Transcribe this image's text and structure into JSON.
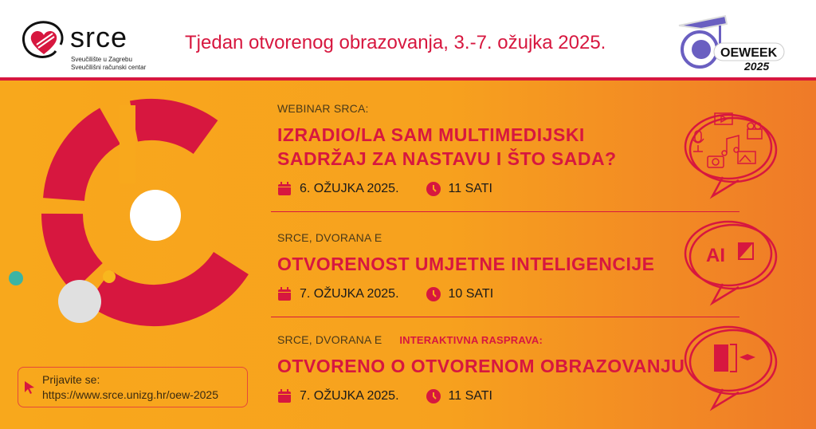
{
  "header": {
    "logo": {
      "name": "srce",
      "subtitle_line1": "Sveučilište u Zagrebu",
      "subtitle_line2": "Sveučilišni računski centar"
    },
    "title": "Tjedan otvorenog obrazovanja, 3.-7. ožujka 2025.",
    "oeweek_logo": {
      "text": "OEWEEK",
      "year": "2025"
    }
  },
  "colors": {
    "accent": "#d7173f",
    "bg_left": "#f8a81c",
    "bg_right": "#ef7a28",
    "oeweek": "#6a5fc1"
  },
  "events": [
    {
      "label": "WEBINAR SRCA:",
      "title_line1": "IZRADIO/LA SAM MULTIMEDIJSKI",
      "title_line2": "SADRŽAJ ZA NASTAVU I ŠTO SADA?",
      "date": "6. OŽUJKA 2025.",
      "time": "11 SATI",
      "icon": "multimedia-speech-bubble-icon"
    },
    {
      "label": "SRCE, DVORANA E",
      "title_line1": "OTVORENOST UMJETNE INTELIGENCIJE",
      "date": "7. OŽUJKA 2025.",
      "time": "10 SATI",
      "icon": "ai-chip-speech-bubble-icon",
      "icon_text": "AI"
    },
    {
      "label": "SRCE, DVORANA E",
      "highlight": "INTERAKTIVNA RASPRAVA:",
      "title_line1": "OTVORENO O OTVORENOM OBRAZOVANJU",
      "date": "7. OŽUJKA 2025.",
      "time": "11 SATI",
      "icon": "open-door-speech-bubble-icon"
    }
  ],
  "registration": {
    "label": "Prijavite se:",
    "url": "https://www.srce.unizg.hr/oew-2025"
  }
}
